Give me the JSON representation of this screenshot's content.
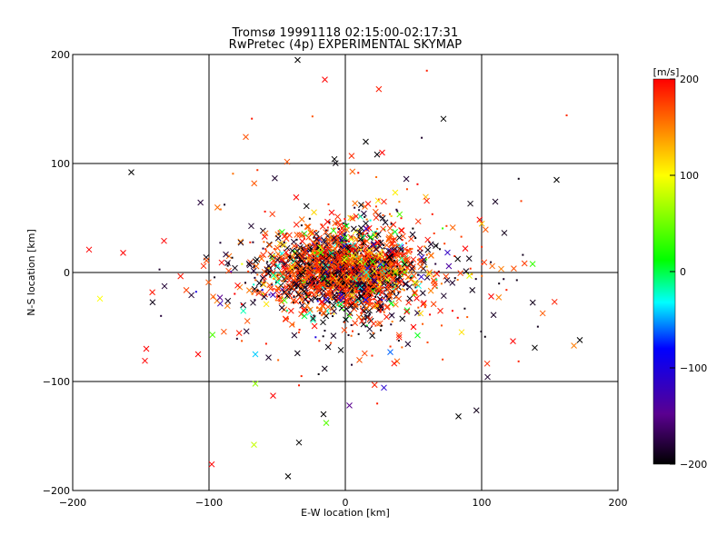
{
  "chart_data": {
    "type": "scatter",
    "title": "Tromsø 19991118 02:15:00-02:17:31",
    "subtitle": "RwPretec (4p) EXPERIMENTAL SKYMAP",
    "xlabel": "E-W location [km]",
    "ylabel": "N-S location [km]",
    "xlim": [
      -200,
      200
    ],
    "ylim": [
      -200,
      200
    ],
    "xticks": [
      -200,
      -100,
      0,
      100,
      200
    ],
    "yticks": [
      -200,
      -100,
      0,
      100,
      200
    ],
    "grid": true,
    "colorbar": {
      "label": "[m/s]",
      "range": [
        -200,
        200
      ],
      "ticks": [
        200,
        100,
        0,
        -100,
        -200
      ],
      "colors": [
        "#000000",
        "#5a0090",
        "#0000ff",
        "#00ffff",
        "#00ff00",
        "#ffff00",
        "#ff0000"
      ]
    },
    "markers": {
      "large": "x",
      "small": "dot"
    },
    "highlighted_points": [
      {
        "x": -35,
        "y": 195,
        "v": -200
      },
      {
        "x": -15,
        "y": 177,
        "v": 200
      },
      {
        "x": 72,
        "y": 141,
        "v": -200
      },
      {
        "x": 15,
        "y": 120,
        "v": -200
      },
      {
        "x": -8,
        "y": 104,
        "v": -200
      },
      {
        "x": 27,
        "y": 110,
        "v": 200
      },
      {
        "x": -157,
        "y": 92,
        "v": -200
      },
      {
        "x": 155,
        "y": 85,
        "v": -200
      },
      {
        "x": -188,
        "y": 21,
        "v": 200
      },
      {
        "x": -163,
        "y": 18,
        "v": 200
      },
      {
        "x": -133,
        "y": 29,
        "v": 200
      },
      {
        "x": -180,
        "y": -24,
        "v": 100
      },
      {
        "x": 107,
        "y": -22,
        "v": 200
      },
      {
        "x": 123,
        "y": -63,
        "v": 200
      },
      {
        "x": 139,
        "y": -69,
        "v": -200
      },
      {
        "x": 172,
        "y": -62,
        "v": -200
      },
      {
        "x": -146,
        "y": -70,
        "v": 200
      },
      {
        "x": -147,
        "y": -81,
        "v": 200
      },
      {
        "x": -108,
        "y": -75,
        "v": 200
      },
      {
        "x": -66,
        "y": -102,
        "v": 60
      },
      {
        "x": -53,
        "y": -113,
        "v": 200
      },
      {
        "x": -16,
        "y": -130,
        "v": -200
      },
      {
        "x": -14,
        "y": -138,
        "v": 40
      },
      {
        "x": 83,
        "y": -132,
        "v": -200
      },
      {
        "x": -67,
        "y": -158,
        "v": 80
      },
      {
        "x": -34,
        "y": -156,
        "v": -200
      },
      {
        "x": -42,
        "y": -187,
        "v": -200
      },
      {
        "x": -98,
        "y": -176,
        "v": 200
      },
      {
        "x": 3,
        "y": -122,
        "v": -150
      },
      {
        "x": -66,
        "y": -75,
        "v": -40
      },
      {
        "x": 33,
        "y": -73,
        "v": -60
      },
      {
        "x": -92,
        "y": -23,
        "v": -150
      },
      {
        "x": 88,
        "y": 22,
        "v": 200
      },
      {
        "x": 91,
        "y": -3,
        "v": 90
      },
      {
        "x": 24,
        "y": 66,
        "v": 110
      },
      {
        "x": -10,
        "y": 55,
        "v": 200
      },
      {
        "x": 50,
        "y": -50,
        "v": 200
      },
      {
        "x": -30,
        "y": -40,
        "v": 0
      },
      {
        "x": 5,
        "y": 20,
        "v": 200
      },
      {
        "x": 20,
        "y": 10,
        "v": 40
      },
      {
        "x": 15,
        "y": -25,
        "v": -80
      },
      {
        "x": -45,
        "y": 5,
        "v": 200
      }
    ]
  }
}
